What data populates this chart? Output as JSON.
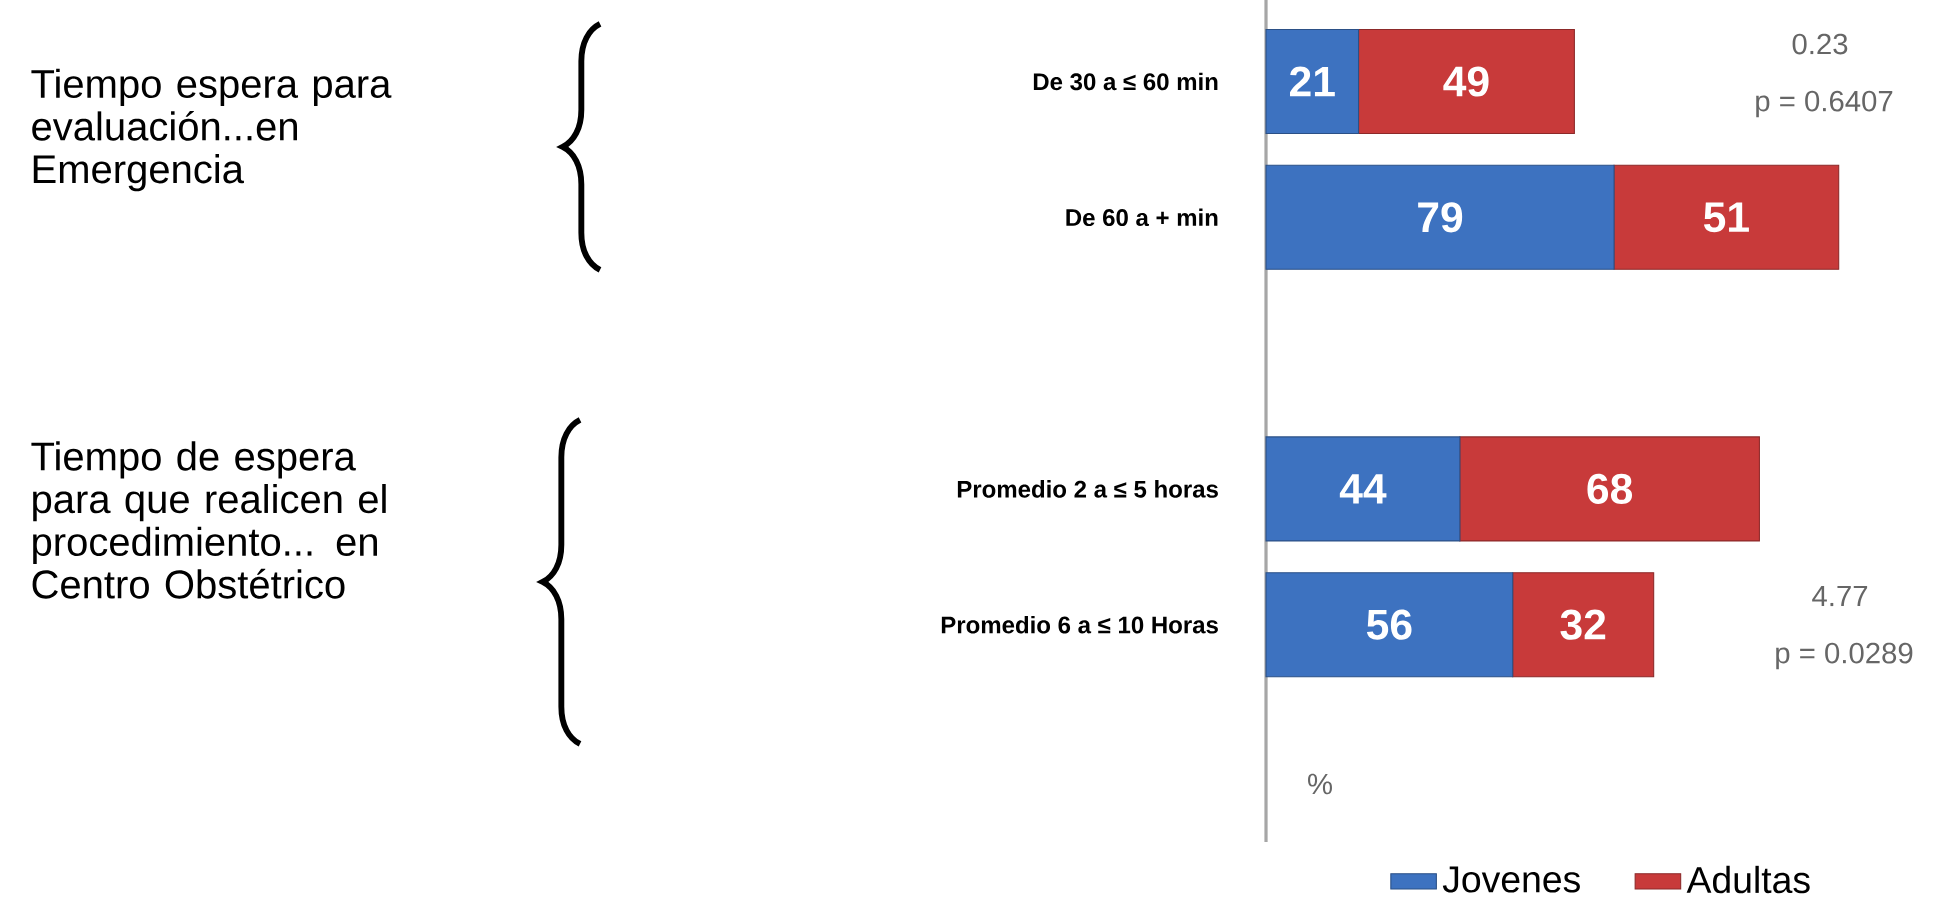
{
  "chart_data": {
    "type": "bar",
    "orientation": "horizontal",
    "stacked": true,
    "data_labels": true,
    "legend": "bottom",
    "tick_labels": "y",
    "categories": [
      "De 30 a ≤ 60 min",
      "De 60 a + min",
      null,
      "Promedio 2 a ≤ 5 horas",
      "Promedio 6 a ≤ 10 Horas"
    ],
    "series": [
      {
        "name": "Jovenes",
        "color": "#3d72c0",
        "values": [
          21,
          79,
          null,
          44,
          56
        ]
      },
      {
        "name": "Adultas",
        "color": "#c83a3a",
        "values": [
          49,
          51,
          null,
          68,
          32
        ]
      }
    ],
    "annotations": [
      "Tiempo espera para evaluación...en Emergencia",
      "Tiempo  de espera para que realicen el procedimiento... en Centro Obstétrico",
      "0.23",
      "p = 0.6407",
      "4.77",
      "p = 0.0289",
      "%"
    ]
  }
}
